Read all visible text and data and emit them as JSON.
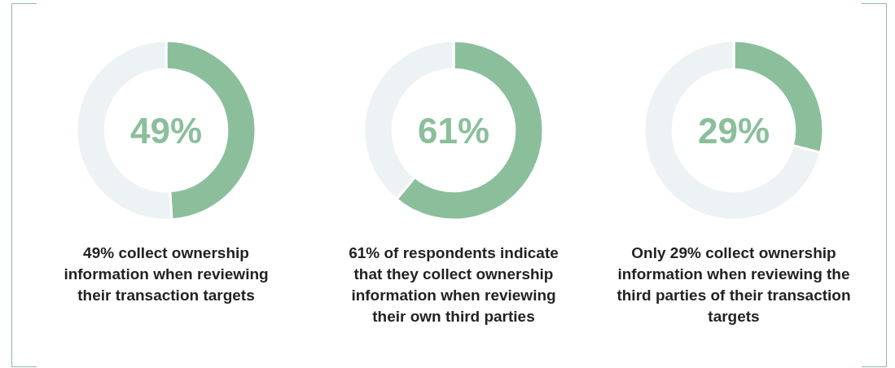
{
  "chart_data": [
    {
      "type": "donut",
      "categories": [
        null,
        null
      ],
      "values": [
        49,
        51
      ],
      "colors": [
        "#8bbf9c",
        "#edf2f4"
      ],
      "annotations": [
        "49%",
        "49% collect ownership information when reviewing their transaction targets"
      ]
    },
    {
      "type": "donut",
      "categories": [
        null,
        null
      ],
      "values": [
        61,
        39
      ],
      "colors": [
        "#8bbf9c",
        "#edf2f4"
      ],
      "annotations": [
        "61%",
        "61% of respondents indicate that they collect ownership information when reviewing their own third parties"
      ]
    },
    {
      "type": "donut",
      "categories": [
        null,
        null
      ],
      "values": [
        29,
        71
      ],
      "colors": [
        "#8bbf9c",
        "#edf2f4"
      ],
      "annotations": [
        "29%",
        "Only 29% collect ownership information when reviewing the third parties of their transaction targets"
      ]
    }
  ]
}
